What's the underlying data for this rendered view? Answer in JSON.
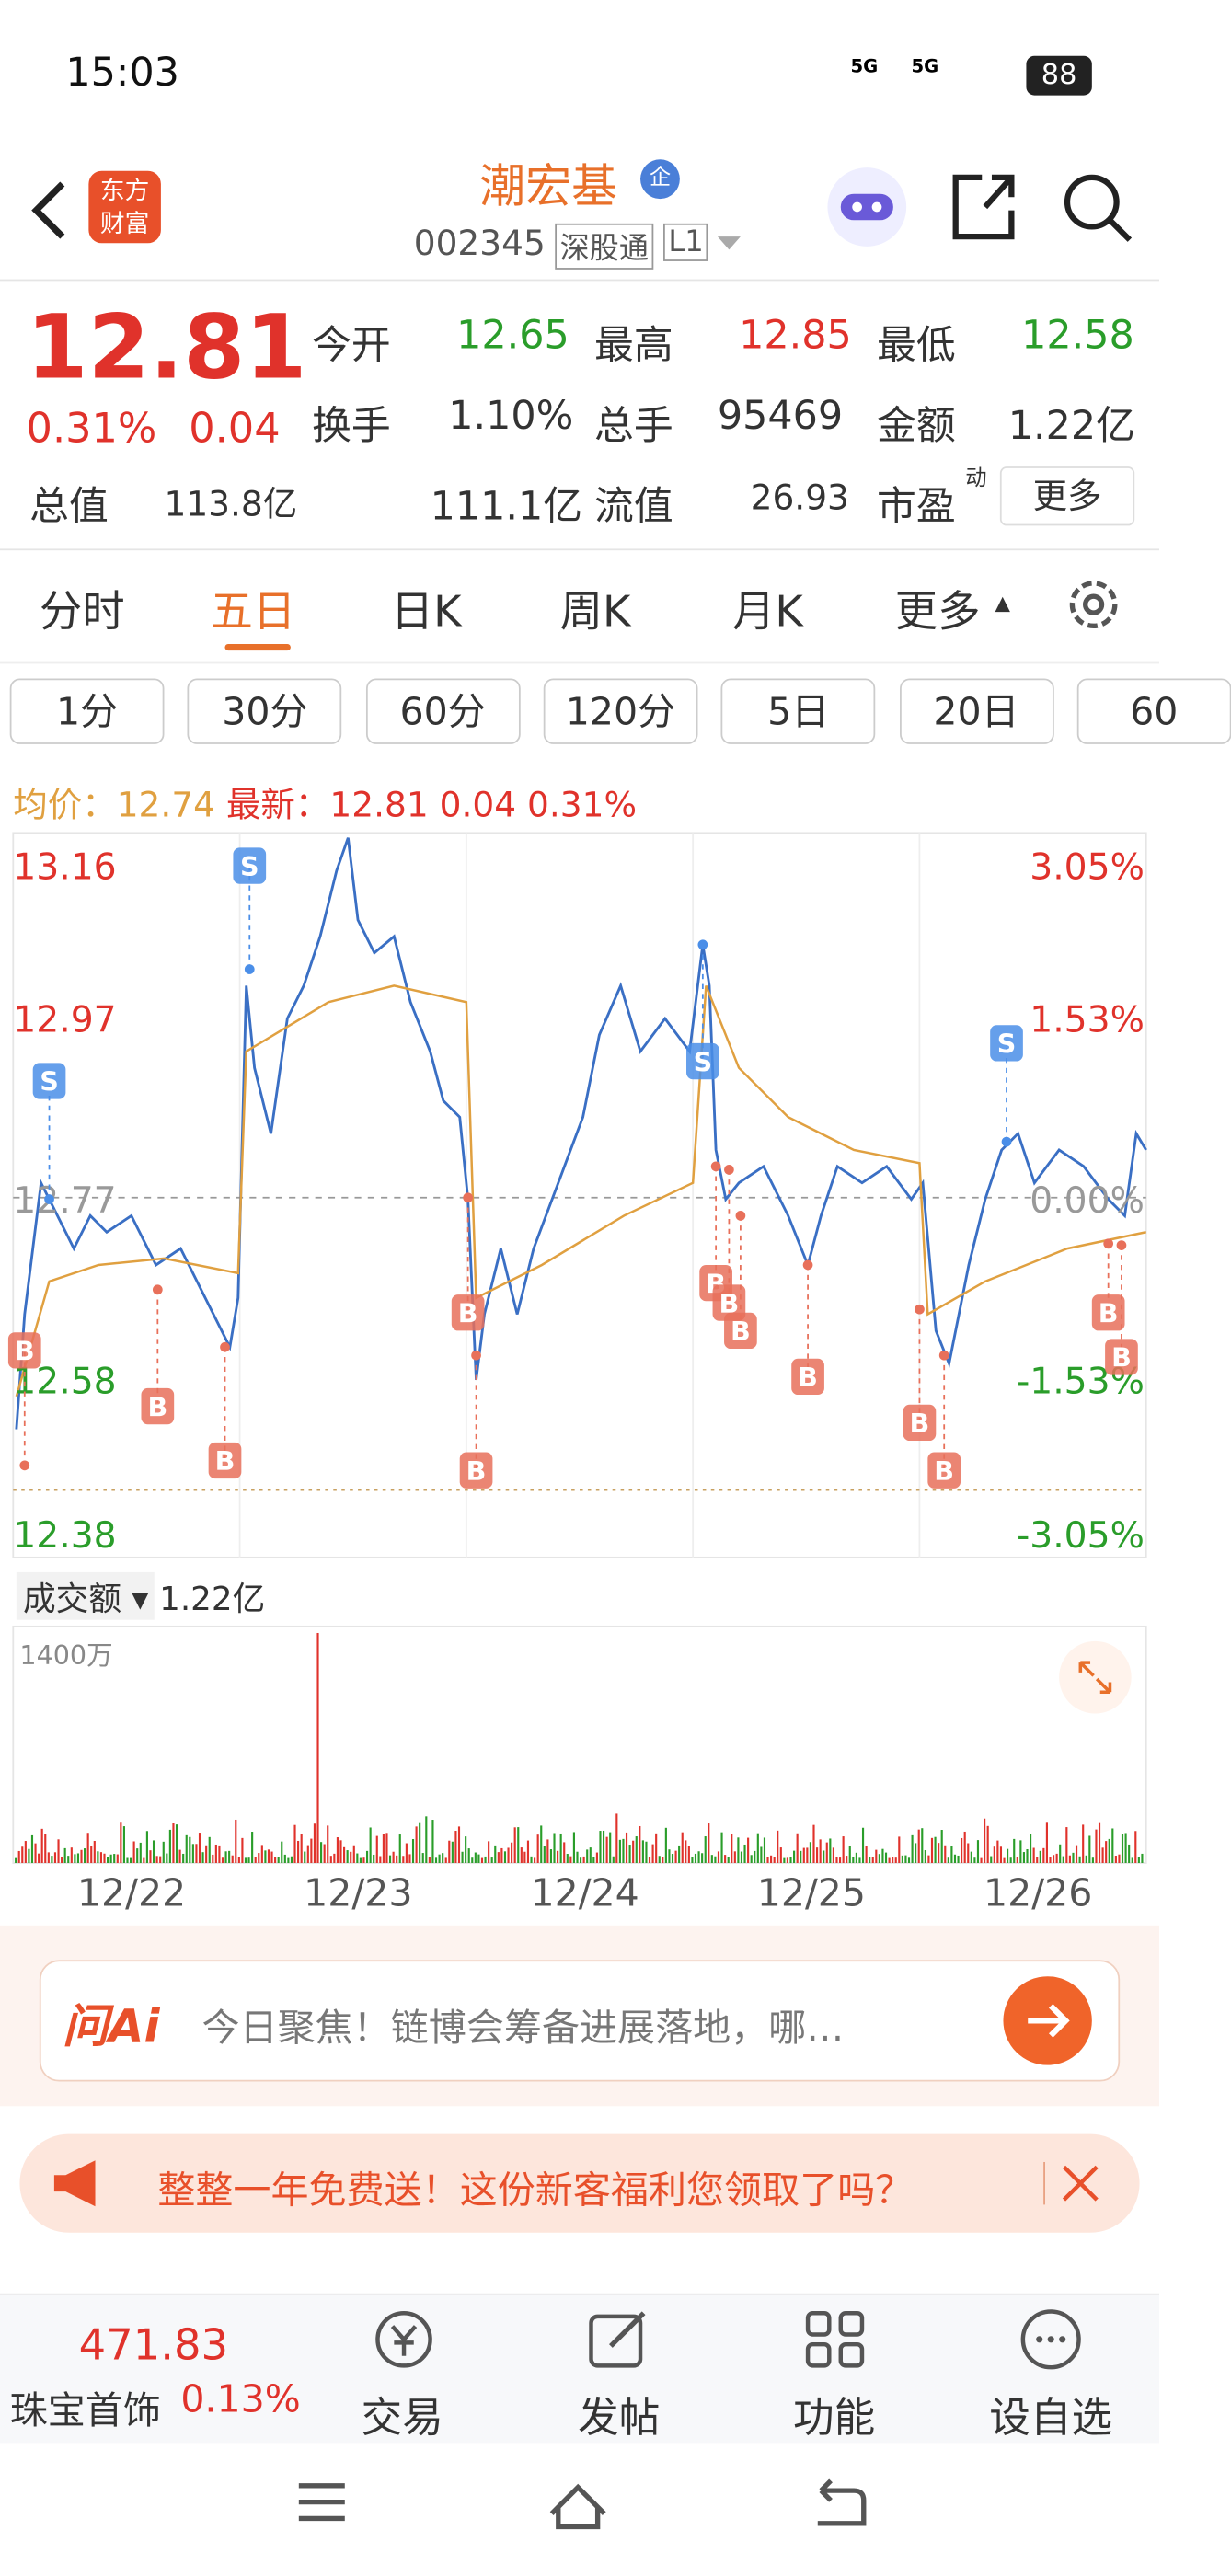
{
  "status": {
    "time": "15:03",
    "signal": [
      "5G",
      "5G"
    ],
    "battery": "88"
  },
  "header": {
    "logo": "东方财富",
    "name": "潮宏基",
    "badge": "企",
    "code": "002345",
    "tags": [
      "深股通",
      "L1"
    ]
  },
  "quote": {
    "price": "12.81",
    "change_pct": "0.31%",
    "change": "0.04",
    "fields": [
      {
        "label": "今开",
        "value": "12.65"
      },
      {
        "label": "最高",
        "value": "12.85"
      },
      {
        "label": "最低",
        "value": "12.58"
      },
      {
        "label": "换手",
        "value": "1.10%"
      },
      {
        "label": "总手",
        "value": "95469"
      },
      {
        "label": "金额",
        "value": "1.22亿"
      },
      {
        "label": "总值",
        "value": "113.8亿"
      },
      {
        "label": "流值",
        "value": "111.1亿"
      },
      {
        "label": "市盈",
        "sup": "动",
        "value": "26.93"
      }
    ],
    "more": "更多"
  },
  "tabs": [
    "分时",
    "五日",
    "日K",
    "周K",
    "月K",
    "更多"
  ],
  "periods": [
    "1分",
    "30分",
    "60分",
    "120分",
    "5日",
    "20日",
    "60"
  ],
  "legend": {
    "avg_label": "均价：",
    "avg": "12.74",
    "latest_label": "最新：",
    "latest": "12.81",
    "change": "0.04",
    "change_pct": "0.31%"
  },
  "axis_left": [
    "13.16",
    "12.97",
    "12.77",
    "12.58",
    "12.38"
  ],
  "axis_right": [
    "3.05%",
    "1.53%",
    "0.00%",
    "-1.53%",
    "-3.05%"
  ],
  "markers": [
    "S",
    "S",
    "S",
    "S",
    "B",
    "B",
    "B",
    "B",
    "B",
    "B",
    "B",
    "B",
    "B",
    "B",
    "B",
    "B",
    "B"
  ],
  "volume": {
    "label": "成交额",
    "value": "1.22亿",
    "max": "1400万"
  },
  "dates": [
    "12/22",
    "12/23",
    "12/24",
    "12/25",
    "12/26"
  ],
  "ai": {
    "brand": "问Ai",
    "text": "今日聚焦！链博会筹备进展落地，哪…"
  },
  "promo": "整整一年免费送！这份新客福利您领取了吗？",
  "bottom": {
    "index": "471.83",
    "name": "珠宝首饰",
    "pct": "0.13%",
    "items": [
      "交易",
      "发帖",
      "功能",
      "设自选"
    ]
  }
}
